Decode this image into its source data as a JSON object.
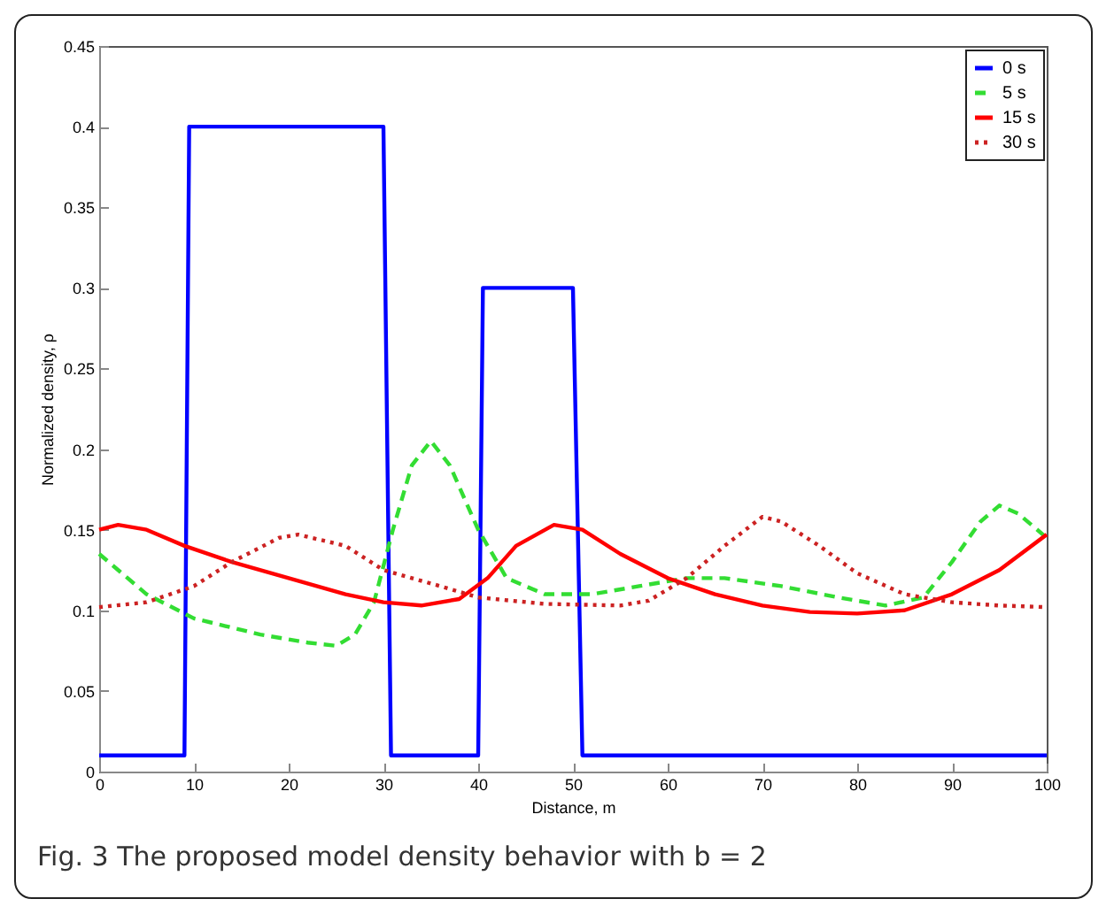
{
  "chart_data": {
    "type": "line",
    "xlabel": "Distance, m",
    "ylabel": "Normalized density, ρ",
    "annotations": [
      "Fig. 3 The proposed model density behavior with b = 2"
    ],
    "xlim": [
      0,
      100
    ],
    "xticks": [
      0,
      10,
      20,
      30,
      40,
      50,
      60,
      70,
      80,
      90,
      100
    ],
    "ylim": [
      0,
      0.45
    ],
    "yticks": [
      0,
      0.05,
      0.1,
      0.15,
      0.2,
      0.25,
      0.3,
      0.35,
      0.4,
      0.45
    ],
    "grid": false,
    "legend": "top right",
    "marker": "none",
    "series": [
      {
        "name": "0 s",
        "color": "#0000ff",
        "line_style": "solid",
        "x": [
          0,
          9,
          9.5,
          30,
          30.8,
          40,
          40.5,
          50,
          51,
          100
        ],
        "values": [
          0.01,
          0.01,
          0.4,
          0.4,
          0.01,
          0.01,
          0.3,
          0.3,
          0.01,
          0.01
        ]
      },
      {
        "name": "5 s",
        "color": "#33dd33",
        "line_style": "dashed",
        "x": [
          0,
          5,
          10,
          17,
          22,
          25,
          27,
          29,
          31,
          33,
          35,
          37,
          40,
          43,
          47,
          52,
          57,
          62,
          66,
          72,
          78,
          83,
          87,
          90,
          93,
          95,
          97,
          100
        ],
        "values": [
          0.135,
          0.11,
          0.095,
          0.085,
          0.08,
          0.078,
          0.085,
          0.105,
          0.15,
          0.19,
          0.205,
          0.19,
          0.15,
          0.12,
          0.11,
          0.11,
          0.115,
          0.12,
          0.12,
          0.115,
          0.108,
          0.103,
          0.108,
          0.13,
          0.155,
          0.165,
          0.16,
          0.145
        ]
      },
      {
        "name": "15 s",
        "color": "#ff0000",
        "line_style": "solid",
        "x": [
          0,
          2,
          5,
          9,
          14,
          20,
          26,
          30,
          34,
          38,
          41,
          44,
          48,
          51,
          55,
          60,
          65,
          70,
          75,
          80,
          85,
          90,
          95,
          100
        ],
        "values": [
          0.15,
          0.153,
          0.15,
          0.14,
          0.13,
          0.12,
          0.11,
          0.105,
          0.103,
          0.107,
          0.12,
          0.14,
          0.153,
          0.15,
          0.135,
          0.12,
          0.11,
          0.103,
          0.099,
          0.098,
          0.1,
          0.11,
          0.125,
          0.147
        ]
      },
      {
        "name": "30 s",
        "color": "#cc2222",
        "line_style": "dotted",
        "x": [
          0,
          5,
          10,
          14,
          19,
          21,
          26,
          30,
          36,
          40,
          47,
          55,
          58,
          62,
          66,
          70,
          72,
          76,
          80,
          85,
          90,
          95,
          100
        ],
        "values": [
          0.102,
          0.105,
          0.115,
          0.13,
          0.145,
          0.147,
          0.14,
          0.125,
          0.115,
          0.108,
          0.104,
          0.103,
          0.106,
          0.12,
          0.14,
          0.158,
          0.155,
          0.14,
          0.123,
          0.11,
          0.105,
          0.103,
          0.102
        ]
      }
    ]
  }
}
